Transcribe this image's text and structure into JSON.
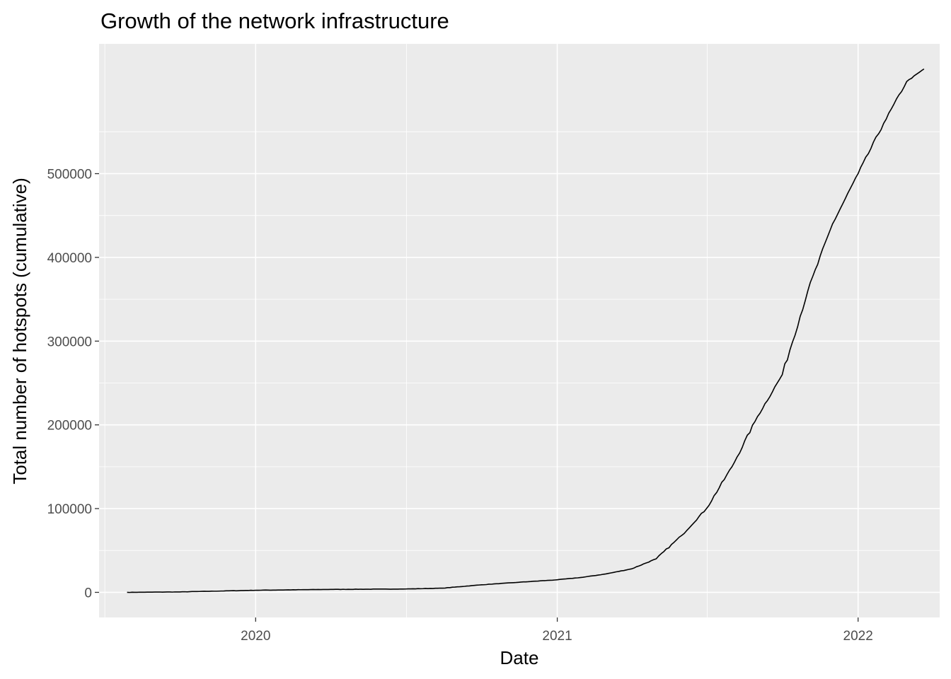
{
  "chart_data": {
    "type": "line",
    "title": "Growth of the network infrastructure",
    "xlabel": "Date",
    "ylabel": "Total number of hotspots (cumulative)",
    "x_ticks": [
      "2020",
      "2021",
      "2022"
    ],
    "y_ticks": [
      "0",
      "100000",
      "200000",
      "300000",
      "400000",
      "500000"
    ],
    "x_range": [
      "2019-06-25",
      "2022-04-10"
    ],
    "ylim": [
      -30000,
      655000
    ],
    "grid": true,
    "background": "#ebebeb",
    "line_color": "#000000",
    "x": [
      "2019-07-29",
      "2019-10-01",
      "2020-01-01",
      "2020-04-01",
      "2020-07-01",
      "2020-08-15",
      "2020-10-01",
      "2020-11-15",
      "2021-01-01",
      "2021-02-01",
      "2021-03-01",
      "2021-04-01",
      "2021-05-01",
      "2021-06-01",
      "2021-07-01",
      "2021-08-01",
      "2021-09-01",
      "2021-10-01",
      "2021-11-01",
      "2021-12-01",
      "2022-01-01",
      "2022-02-01",
      "2022-03-01",
      "2022-03-22"
    ],
    "y": [
      0,
      500,
      2500,
      3500,
      4000,
      5000,
      9000,
      12000,
      15000,
      18000,
      22000,
      28000,
      40000,
      68000,
      100000,
      150000,
      210000,
      260000,
      360000,
      440000,
      500000,
      560000,
      610000,
      625000
    ]
  }
}
